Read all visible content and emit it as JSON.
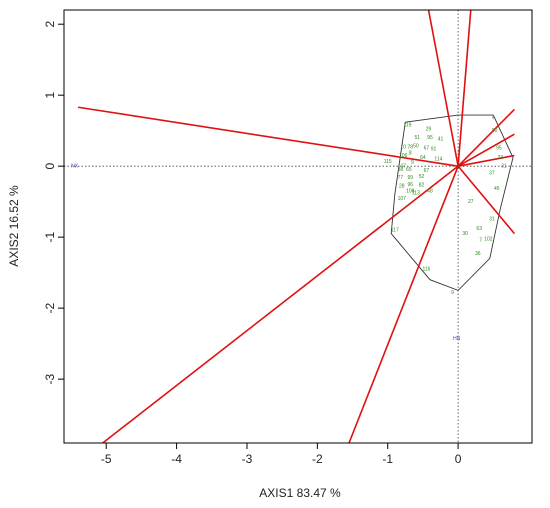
{
  "chart_data": {
    "type": "scatter",
    "subtype": "PCA biplot",
    "xlabel": "AXIS1 83.47 %",
    "ylabel": "AXIS2 16.52 %",
    "xlim": [
      -5.6,
      1.05
    ],
    "ylim": [
      -3.9,
      2.2
    ],
    "xticks": [
      -5,
      -4,
      -3,
      -2,
      -1,
      0
    ],
    "yticks": [
      -3,
      -2,
      -1,
      0,
      1,
      2
    ],
    "grid": false,
    "zero_lines": "dotted",
    "colors": {
      "points": "#2e8b1e",
      "vectors": "#e01010",
      "hull": "#333333",
      "variables": "#3b3bdc",
      "frame": "#000000"
    },
    "variable_labels": [
      {
        "label": "NX",
        "x": -5.45,
        "y": 0.0
      },
      {
        "label": "HN",
        "x": -0.02,
        "y": -2.43
      }
    ],
    "vectors": [
      {
        "x": -5.4,
        "y": 0.83
      },
      {
        "x": -5.05,
        "y": -3.9
      },
      {
        "x": -1.55,
        "y": -3.9
      },
      {
        "x": -0.42,
        "y": 2.2
      },
      {
        "x": 0.18,
        "y": 2.2
      },
      {
        "x": 0.8,
        "y": 0.8
      },
      {
        "x": 0.8,
        "y": 0.45
      },
      {
        "x": 0.8,
        "y": 0.15
      },
      {
        "x": 0.8,
        "y": -0.95
      }
    ],
    "hull": [
      [
        -0.75,
        0.62
      ],
      [
        0.0,
        0.72
      ],
      [
        0.5,
        0.72
      ],
      [
        0.78,
        0.12
      ],
      [
        0.6,
        -0.6
      ],
      [
        0.45,
        -1.3
      ],
      [
        0.0,
        -1.75
      ],
      [
        -0.4,
        -1.6
      ],
      [
        -0.95,
        -0.95
      ],
      [
        -0.9,
        -0.4
      ]
    ],
    "points": [
      {
        "label": "119",
        "x": -0.72,
        "y": 0.58
      },
      {
        "label": "29",
        "x": -0.42,
        "y": 0.52
      },
      {
        "label": "4",
        "x": 0.5,
        "y": 0.68
      },
      {
        "label": "51",
        "x": -0.58,
        "y": 0.4
      },
      {
        "label": "95",
        "x": -0.4,
        "y": 0.4
      },
      {
        "label": "41",
        "x": -0.25,
        "y": 0.38
      },
      {
        "label": "10",
        "x": -0.78,
        "y": 0.27
      },
      {
        "label": "78",
        "x": -0.68,
        "y": 0.27
      },
      {
        "label": "50",
        "x": -0.6,
        "y": 0.28
      },
      {
        "label": "67",
        "x": -0.45,
        "y": 0.25
      },
      {
        "label": "91",
        "x": -0.35,
        "y": 0.24
      },
      {
        "label": "90",
        "x": 0.52,
        "y": 0.5
      },
      {
        "label": "95",
        "x": 0.58,
        "y": 0.25
      },
      {
        "label": "106",
        "x": -0.78,
        "y": 0.15
      },
      {
        "label": "8",
        "x": -0.68,
        "y": 0.18
      },
      {
        "label": "64",
        "x": -0.5,
        "y": 0.12
      },
      {
        "label": "115",
        "x": -1.0,
        "y": 0.06
      },
      {
        "label": "47",
        "x": -0.78,
        "y": 0.0
      },
      {
        "label": "9",
        "x": -0.65,
        "y": 0.05
      },
      {
        "label": "114",
        "x": -0.28,
        "y": 0.1
      },
      {
        "label": "23",
        "x": 0.6,
        "y": 0.12
      },
      {
        "label": "38",
        "x": -0.82,
        "y": -0.05
      },
      {
        "label": "65",
        "x": -0.7,
        "y": -0.05
      },
      {
        "label": "67",
        "x": -0.45,
        "y": -0.06
      },
      {
        "label": "31",
        "x": 0.65,
        "y": 0.0
      },
      {
        "label": "77",
        "x": -0.82,
        "y": -0.16
      },
      {
        "label": "99",
        "x": -0.68,
        "y": -0.16
      },
      {
        "label": "52",
        "x": -0.52,
        "y": -0.15
      },
      {
        "label": "37",
        "x": 0.48,
        "y": -0.1
      },
      {
        "label": "28",
        "x": -0.8,
        "y": -0.28
      },
      {
        "label": "96",
        "x": -0.68,
        "y": -0.26
      },
      {
        "label": "82",
        "x": -0.52,
        "y": -0.27
      },
      {
        "label": "108",
        "x": -0.68,
        "y": -0.35
      },
      {
        "label": "113",
        "x": -0.6,
        "y": -0.38
      },
      {
        "label": "48",
        "x": -0.4,
        "y": -0.35
      },
      {
        "label": "107",
        "x": -0.8,
        "y": -0.46
      },
      {
        "label": "45",
        "x": 0.55,
        "y": -0.32
      },
      {
        "label": "27",
        "x": 0.18,
        "y": -0.5
      },
      {
        "label": "31",
        "x": 0.48,
        "y": -0.75
      },
      {
        "label": "117",
        "x": -0.9,
        "y": -0.9
      },
      {
        "label": "63",
        "x": 0.3,
        "y": -0.88
      },
      {
        "label": "30",
        "x": 0.1,
        "y": -0.95
      },
      {
        "label": "102",
        "x": 0.43,
        "y": -1.03
      },
      {
        "label": "7",
        "x": 0.32,
        "y": -1.04
      },
      {
        "label": "36",
        "x": 0.28,
        "y": -1.23
      },
      {
        "label": "116",
        "x": -0.45,
        "y": -1.45
      },
      {
        "label": "9",
        "x": -0.08,
        "y": -1.78
      }
    ]
  }
}
